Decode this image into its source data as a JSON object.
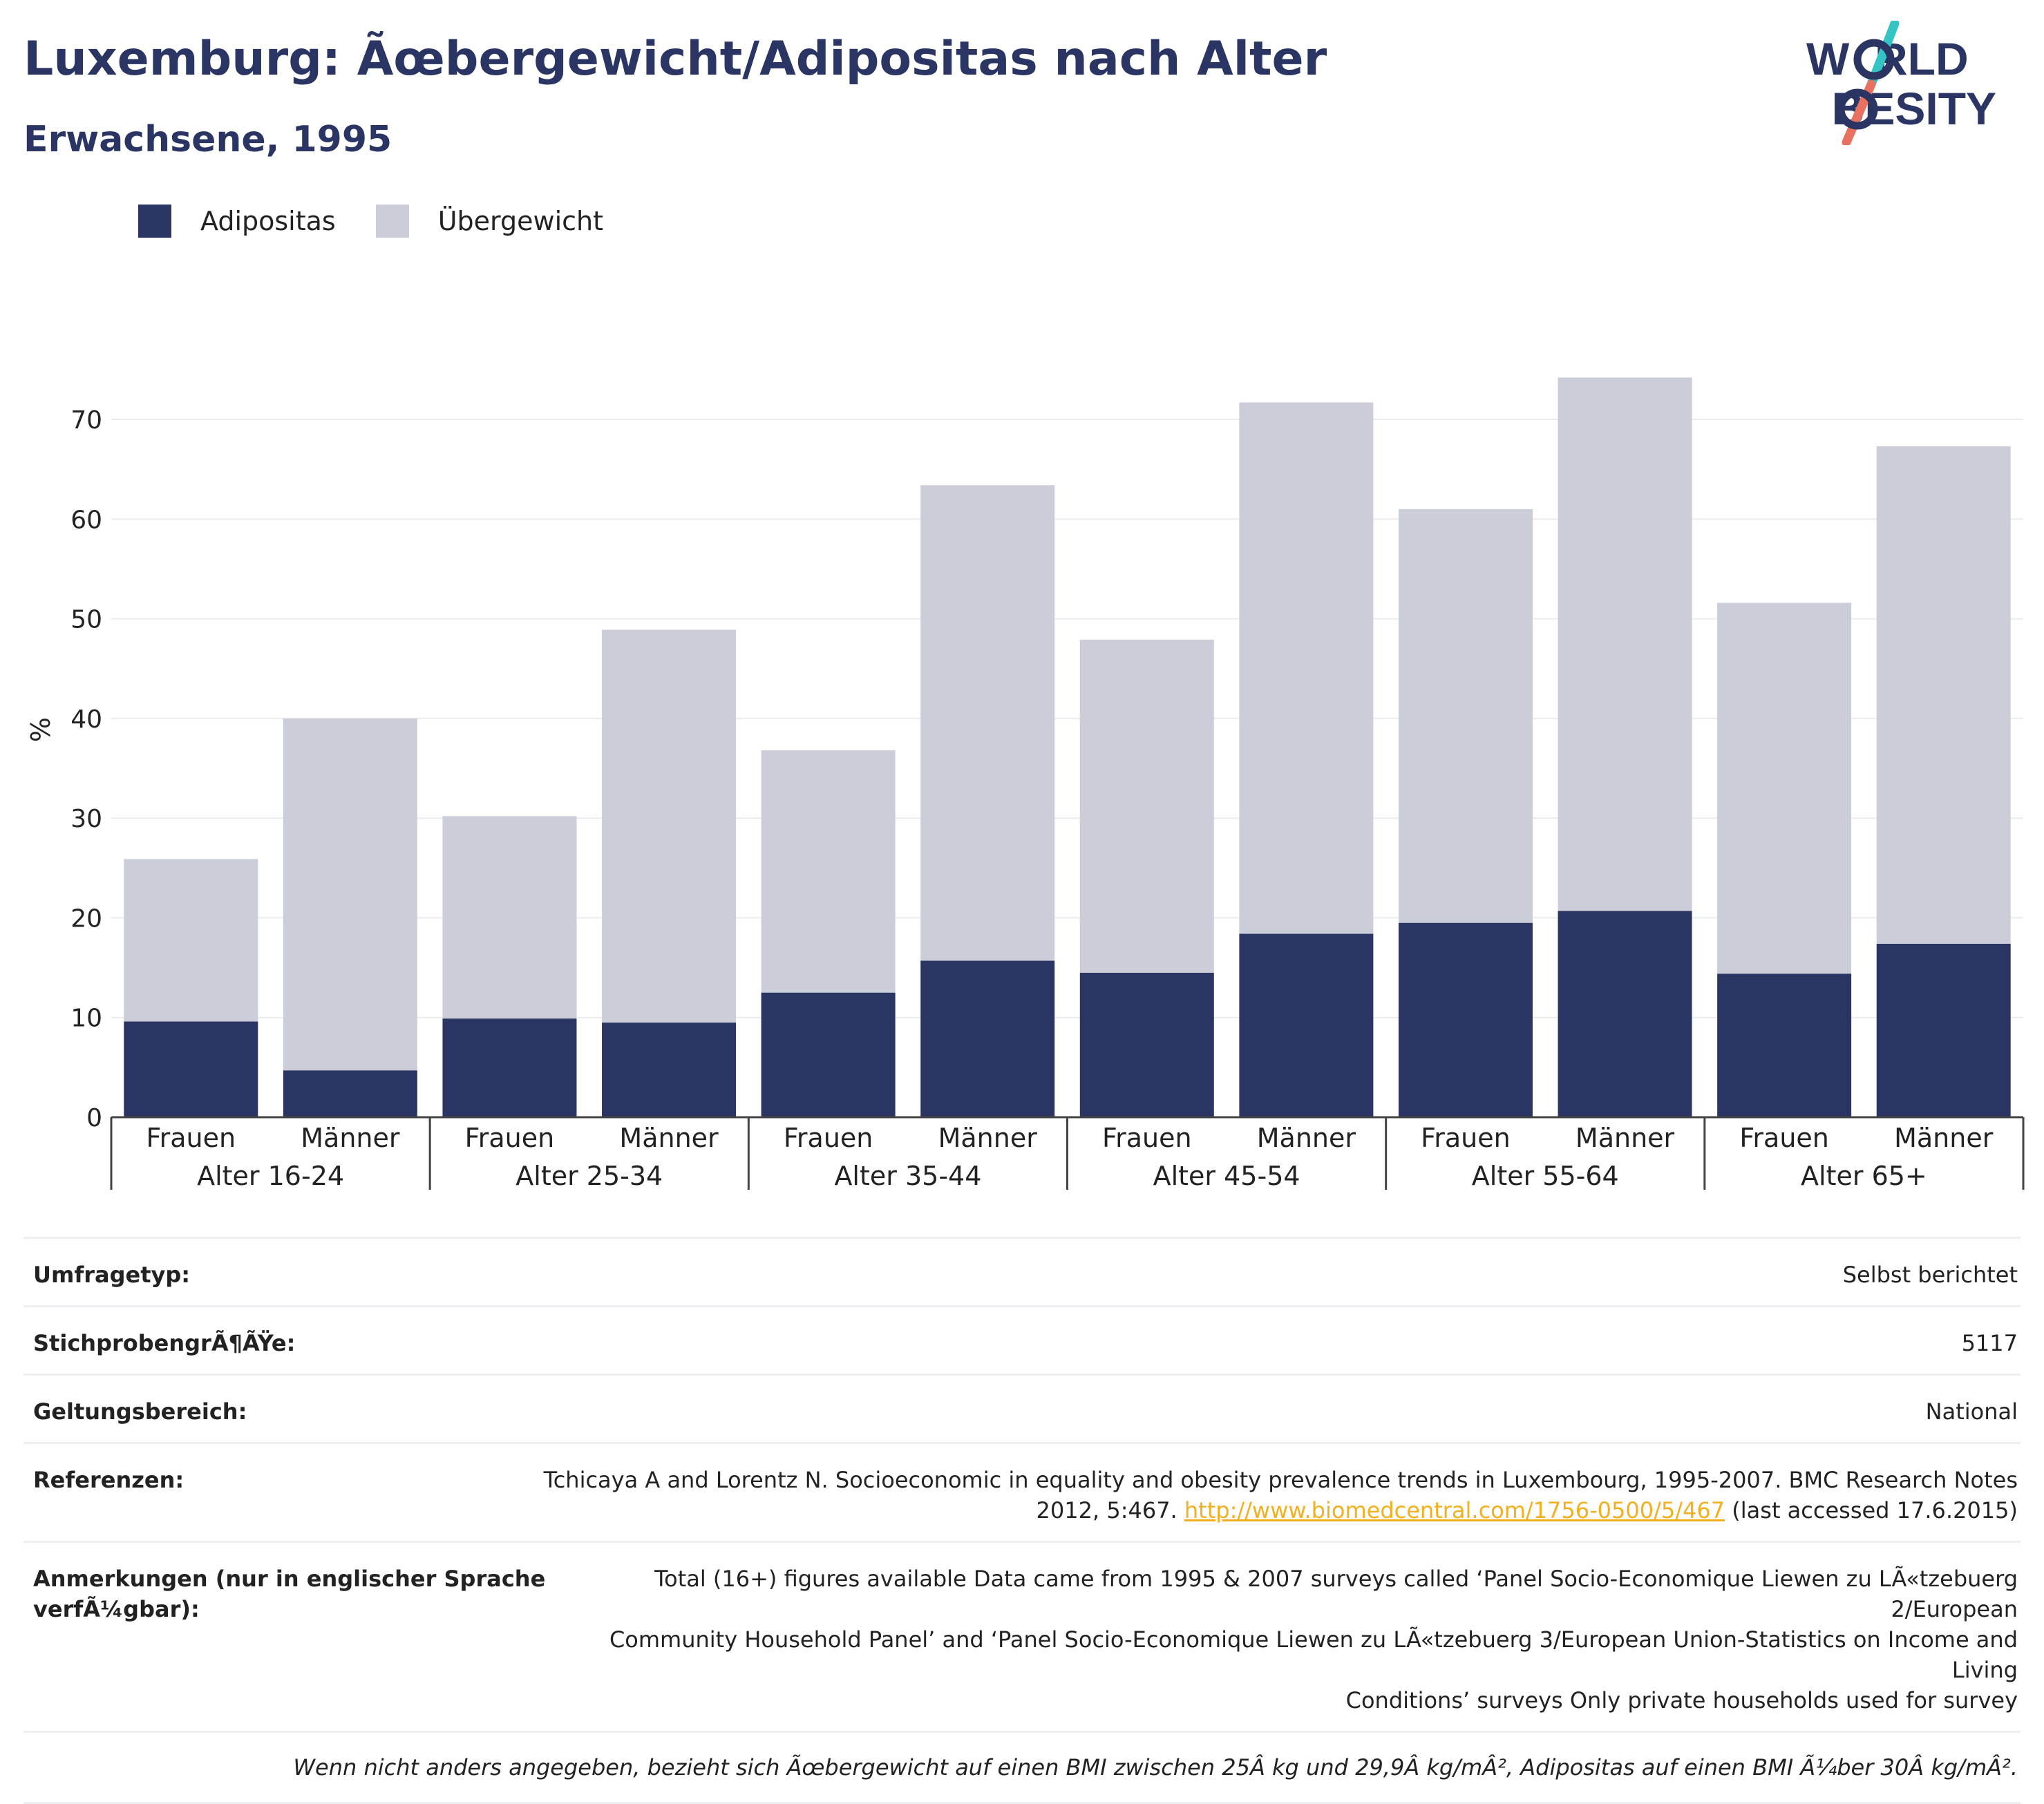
{
  "header": {
    "title": "Luxemburg: Ãœbergewicht/Adipositas nach Alter",
    "subtitle": "Erwachsene, 1995"
  },
  "logo": {
    "line1": "W  RLD",
    "line2": "  BESITY",
    "colors": {
      "text": "#2a3563",
      "slash_top": "#35c4c4",
      "slash_bottom": "#e8715f"
    }
  },
  "legend": [
    {
      "label": "Adipositas",
      "color": "#2a3563"
    },
    {
      "label": "Übergewicht",
      "color": "#cbcdd8"
    }
  ],
  "chart_data": {
    "type": "bar",
    "stacked": true,
    "ylabel": "%",
    "ylim": [
      0,
      80
    ],
    "yticks": [
      0,
      10,
      20,
      30,
      40,
      50,
      60,
      70
    ],
    "grid": true,
    "legend_position": "top-left",
    "groups": [
      "Alter 16-24",
      "Alter 25-34",
      "Alter 35-44",
      "Alter 45-54",
      "Alter 55-64",
      "Alter 65+"
    ],
    "sexes": [
      "Frauen",
      "Männer"
    ],
    "series": [
      {
        "name": "Adipositas",
        "color": "#2a3563",
        "values": [
          9.6,
          4.7,
          9.9,
          9.5,
          12.5,
          15.7,
          14.5,
          18.4,
          19.5,
          20.7,
          14.4,
          17.4
        ]
      },
      {
        "name": "Übergewicht",
        "color": "#cbcdd8",
        "values": [
          16.3,
          35.3,
          20.3,
          39.4,
          24.3,
          47.7,
          33.4,
          53.3,
          41.5,
          53.5,
          37.2,
          49.9
        ]
      }
    ]
  },
  "meta": {
    "rows": [
      {
        "label": "Umfragetyp:",
        "value": "Selbst berichtet"
      },
      {
        "label": "StichprobengrÃ¶ÃŸe:",
        "value": "5117"
      },
      {
        "label": "Geltungsbereich:",
        "value": "National"
      }
    ],
    "reference": {
      "label": "Referenzen:",
      "text_line1": "Tchicaya A and Lorentz N. Socioeconomic in equality and obesity prevalence trends in Luxembourg, 1995-2007. BMC Research Notes",
      "text_line2": "2012, 5:467.",
      "link": "http://www.biomedcentral.com/1756-0500/5/467",
      "accessed": "(last accessed 17.6.2015)"
    },
    "notes": {
      "label_line1": "Anmerkungen (nur in englischer Sprache",
      "label_line2": "verfÃ¼gbar):",
      "line1": "Total (16+) figures available Data came from 1995 & 2007 surveys called ‘Panel Socio-Economique Liewen zu LÃ«tzebuerg 2/European",
      "line2": "Community Household Panel’ and ‘Panel Socio-Economique Liewen zu LÃ«tzebuerg 3/European Union-Statistics on Income and Living",
      "line3": "Conditions’ surveys Only private households used for survey"
    },
    "footnote": "Wenn nicht anders angegeben, bezieht sich Ãœbergewicht auf einen BMI zwischen 25Â kg und 29,9Â kg/mÂ², Adipositas auf einen BMI Ã¼ber 30Â kg/mÂ²."
  }
}
